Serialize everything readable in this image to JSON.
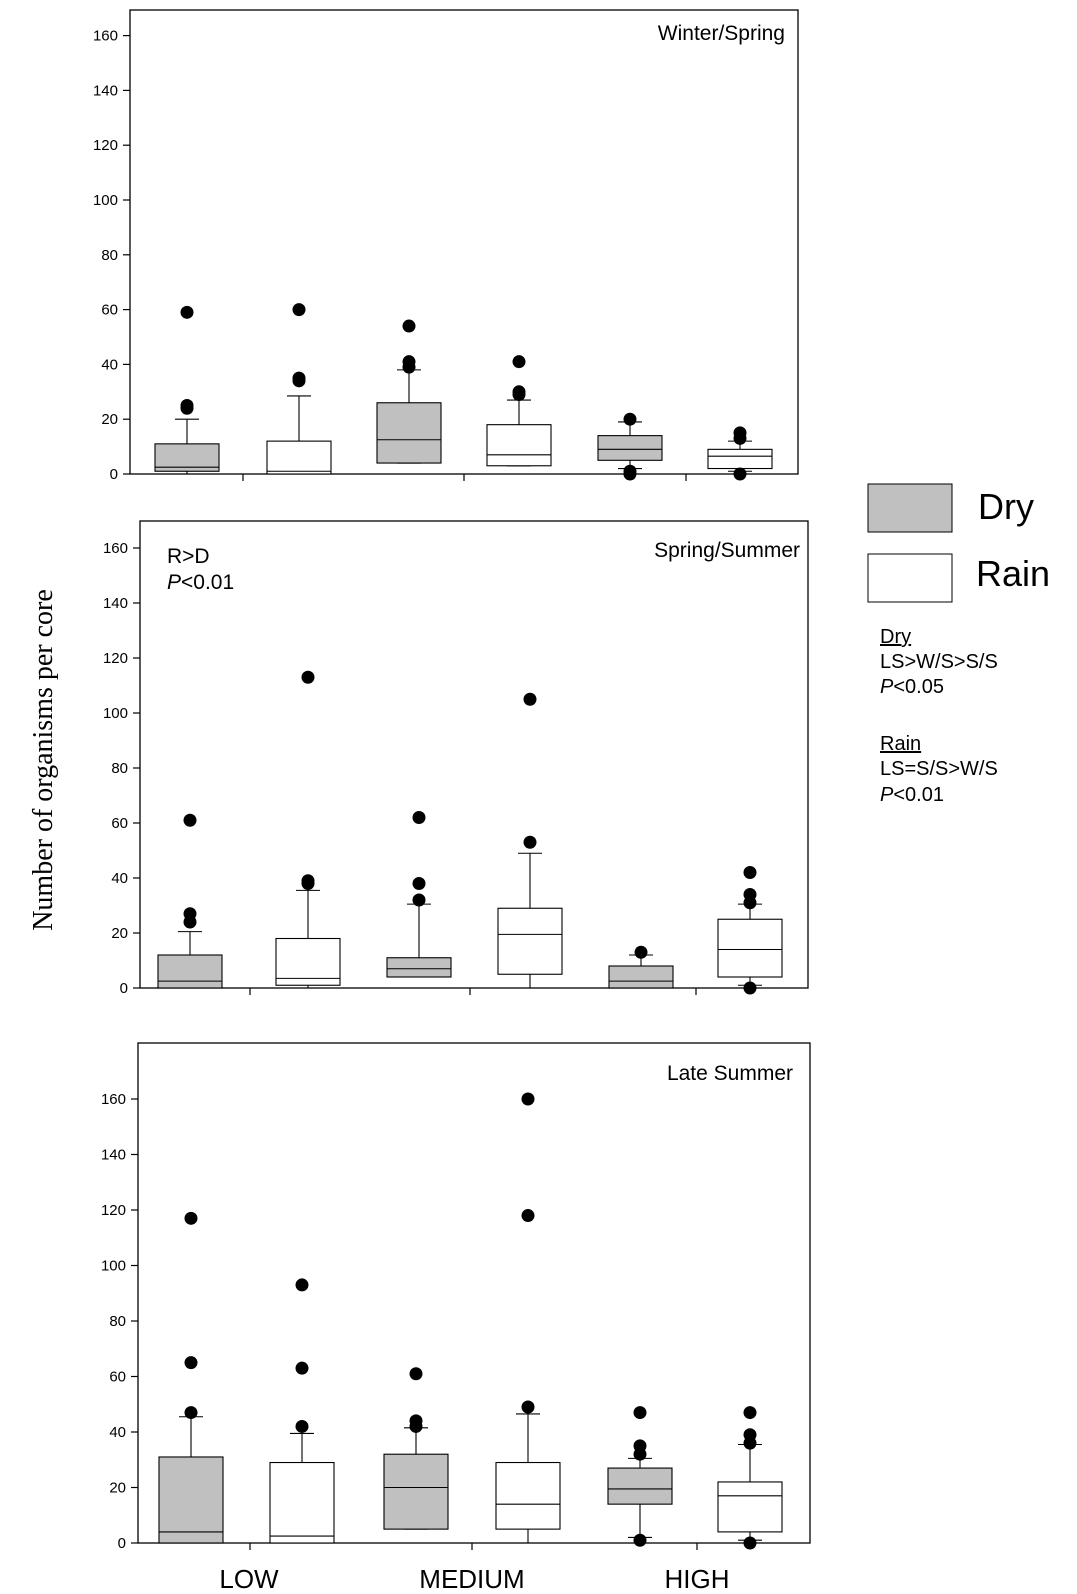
{
  "chart_data": {
    "type": "box",
    "ylabel": "Number of organisms per core",
    "categories": [
      "LOW",
      "MEDIUM",
      "HIGH"
    ],
    "ylim": [
      0,
      170
    ],
    "yticks": [
      0,
      20,
      40,
      60,
      80,
      100,
      120,
      140,
      160
    ],
    "legend": {
      "placement": "right",
      "entries": [
        {
          "name": "Dry",
          "color": "#c0c0c0"
        },
        {
          "name": "Rain",
          "color": "#ffffff"
        }
      ]
    },
    "comparisons": [
      {
        "title": "Dry",
        "text": "LS>W/S>S/S",
        "p_prefix": "P",
        "p_value": "<0.05"
      },
      {
        "title": "Rain",
        "text": "LS=S/S>W/S",
        "p_prefix": "P",
        "p_value": "<0.01"
      }
    ],
    "panels": [
      {
        "title": "Winter/Spring",
        "note": "",
        "note_p_prefix": "",
        "note_p_value": "",
        "boxes": [
          {
            "category": "LOW",
            "series": "Dry",
            "whisker_low": 0,
            "q1": 1,
            "median": 2.5,
            "q3": 11,
            "whisker_high": 20,
            "outliers": [
              24,
              25,
              59
            ]
          },
          {
            "category": "LOW",
            "series": "Rain",
            "whisker_low": 0,
            "q1": 0,
            "median": 1,
            "q3": 12,
            "whisker_high": 28.5,
            "outliers": [
              34,
              35,
              60
            ]
          },
          {
            "category": "MEDIUM",
            "series": "Dry",
            "whisker_low": 4,
            "q1": 4,
            "median": 12.5,
            "q3": 26,
            "whisker_high": 38,
            "outliers": [
              39,
              41,
              54
            ]
          },
          {
            "category": "MEDIUM",
            "series": "Rain",
            "whisker_low": 3,
            "q1": 3,
            "median": 7,
            "q3": 18,
            "whisker_high": 27,
            "outliers": [
              29,
              30,
              41
            ]
          },
          {
            "category": "HIGH",
            "series": "Dry",
            "whisker_low": 2,
            "q1": 5,
            "median": 9,
            "q3": 14,
            "whisker_high": 19,
            "outliers": [
              0,
              1,
              20
            ]
          },
          {
            "category": "HIGH",
            "series": "Rain",
            "whisker_low": 1,
            "q1": 2,
            "median": 6.5,
            "q3": 9,
            "whisker_high": 12,
            "outliers": [
              0,
              13,
              15
            ]
          }
        ]
      },
      {
        "title": "Spring/Summer",
        "note": "R>D",
        "note_p_prefix": "P",
        "note_p_value": "<0.01",
        "boxes": [
          {
            "category": "LOW",
            "series": "Dry",
            "whisker_low": 0,
            "q1": 0,
            "median": 2.5,
            "q3": 12,
            "whisker_high": 20.5,
            "outliers": [
              24,
              27,
              61
            ]
          },
          {
            "category": "LOW",
            "series": "Rain",
            "whisker_low": 0,
            "q1": 1,
            "median": 3.5,
            "q3": 18,
            "whisker_high": 35.5,
            "outliers": [
              38,
              39,
              113
            ]
          },
          {
            "category": "MEDIUM",
            "series": "Dry",
            "whisker_low": 4,
            "q1": 4,
            "median": 7,
            "q3": 11,
            "whisker_high": 30.5,
            "outliers": [
              32,
              38,
              62
            ]
          },
          {
            "category": "MEDIUM",
            "series": "Rain",
            "whisker_low": 0,
            "q1": 5,
            "median": 19.5,
            "q3": 29,
            "whisker_high": 49,
            "outliers": [
              53,
              105
            ]
          },
          {
            "category": "HIGH",
            "series": "Dry",
            "whisker_low": 0,
            "q1": 0,
            "median": 2.5,
            "q3": 8,
            "whisker_high": 12,
            "outliers": [
              13
            ]
          },
          {
            "category": "HIGH",
            "series": "Rain",
            "whisker_low": 1,
            "q1": 4,
            "median": 14,
            "q3": 25,
            "whisker_high": 30.5,
            "outliers": [
              0,
              31,
              34,
              42
            ]
          }
        ]
      },
      {
        "title": "Late Summer",
        "note": "",
        "note_p_prefix": "",
        "note_p_value": "",
        "boxes": [
          {
            "category": "LOW",
            "series": "Dry",
            "whisker_low": 0,
            "q1": 0,
            "median": 4,
            "q3": 31,
            "whisker_high": 45.5,
            "outliers": [
              47,
              65,
              117
            ]
          },
          {
            "category": "LOW",
            "series": "Rain",
            "whisker_low": 0,
            "q1": 0,
            "median": 2.5,
            "q3": 29,
            "whisker_high": 39.5,
            "outliers": [
              42,
              63,
              93
            ]
          },
          {
            "category": "MEDIUM",
            "series": "Dry",
            "whisker_low": 5,
            "q1": 5,
            "median": 20,
            "q3": 32,
            "whisker_high": 41.5,
            "outliers": [
              42,
              44,
              61
            ]
          },
          {
            "category": "MEDIUM",
            "series": "Rain",
            "whisker_low": 0,
            "q1": 5,
            "median": 14,
            "q3": 29,
            "whisker_high": 46.5,
            "outliers": [
              49,
              118,
              160
            ]
          },
          {
            "category": "HIGH",
            "series": "Dry",
            "whisker_low": 2,
            "q1": 14,
            "median": 19.5,
            "q3": 27,
            "whisker_high": 30.5,
            "outliers": [
              1,
              32,
              35,
              47
            ]
          },
          {
            "category": "HIGH",
            "series": "Rain",
            "whisker_low": 1,
            "q1": 4,
            "median": 17,
            "q3": 22,
            "whisker_high": 35.5,
            "outliers": [
              0,
              36,
              39,
              47
            ]
          }
        ]
      }
    ]
  }
}
